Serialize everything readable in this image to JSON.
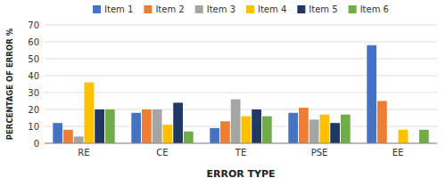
{
  "chart_data": {
    "type": "bar",
    "categories": [
      "RE",
      "CE",
      "TE",
      "PSE",
      "EE"
    ],
    "series": [
      {
        "name": "Item 1",
        "color": "#4472C4",
        "values": [
          12,
          18,
          9,
          18,
          58
        ]
      },
      {
        "name": "Item 2",
        "color": "#ED7D31",
        "values": [
          8,
          20,
          13,
          21,
          25
        ]
      },
      {
        "name": "Item 3",
        "color": "#A5A5A5",
        "values": [
          4,
          20,
          26,
          14,
          0
        ]
      },
      {
        "name": "Item 4",
        "color": "#FFC000",
        "values": [
          36,
          11,
          16,
          17,
          8
        ]
      },
      {
        "name": "Item 5",
        "color": "#1F3864",
        "values": [
          20,
          24,
          20,
          12,
          0
        ]
      },
      {
        "name": "Item 6",
        "color": "#70AD47",
        "values": [
          20,
          7,
          16,
          17,
          8
        ]
      }
    ],
    "xlabel": "ERROR TYPE",
    "ylabel": "PERCENTAGE OF ERROR %",
    "ylim": [
      0,
      70
    ],
    "yticks": [
      0,
      10,
      20,
      30,
      40,
      50,
      60,
      70
    ],
    "grid": true,
    "legend": "top"
  }
}
